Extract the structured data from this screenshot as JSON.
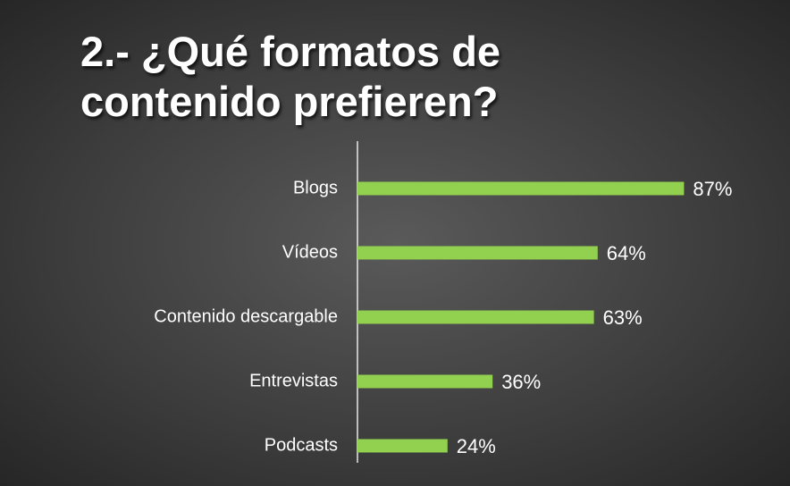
{
  "chart_data": {
    "type": "barh",
    "title": "2.- ¿Qué formatos de contenido prefieren?",
    "categories": [
      "Blogs",
      "Vídeos",
      "Contenido descargable",
      "Entrevistas",
      "Podcasts"
    ],
    "values": [
      87,
      64,
      63,
      36,
      24
    ],
    "value_labels": [
      "87%",
      "64%",
      "63%",
      "36%",
      "24%"
    ],
    "color": "#92d050"
  }
}
